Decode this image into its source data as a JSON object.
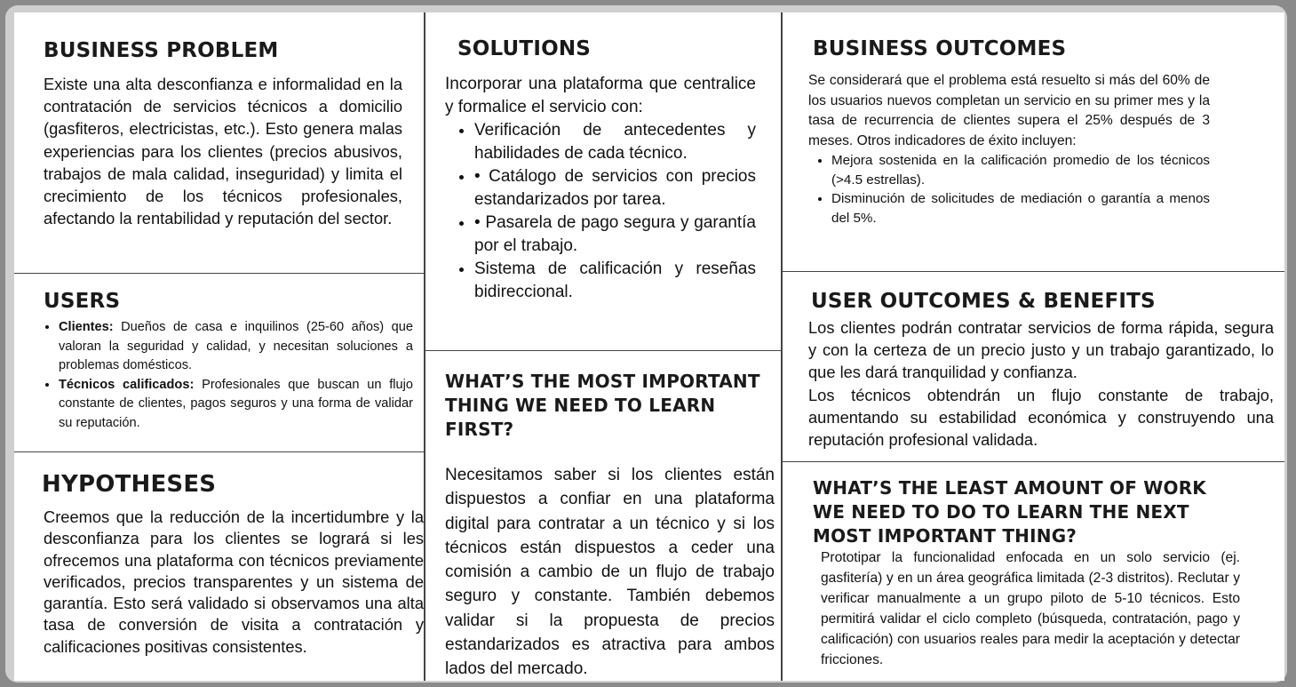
{
  "business_problem": {
    "title": "BUSINESS PROBLEM",
    "text": "Existe una alta desconfianza e informalidad en la contratación de servicios técnicos a domicilio (gasfiteros, electricistas, etc.). Esto genera malas experiencias para los clientes (precios abusivos, trabajos de mala calidad, inseguridad) y limita el crecimiento de los técnicos profesionales, afectando la rentabilidad y reputación del sector."
  },
  "users": {
    "title": "USERS",
    "items": [
      {
        "label": "Clientes:",
        "text": " Dueños de casa e inquilinos (25-60 años) que valoran la seguridad y calidad, y necesitan soluciones a problemas domésticos."
      },
      {
        "label": "Técnicos calificados:",
        "text": " Profesionales que buscan un flujo constante de clientes, pagos seguros y una forma de validar su reputación."
      }
    ]
  },
  "hypotheses": {
    "title": "HYPOTHESES",
    "text": "Creemos que la reducción de la incertidumbre y la desconfianza para los clientes se logrará si les ofrecemos una plataforma con técnicos previamente verificados, precios transparentes y un sistema de garantía. Esto será validado si observamos una alta tasa de conversión de visita a contratación y calificaciones positivas consistentes."
  },
  "solutions": {
    "title": "SOLUTIONS",
    "intro": "Incorporar una plataforma que centralice y formalice el servicio con:",
    "items": [
      "Verificación de antecedentes y habilidades de cada técnico.",
      "• Catálogo de servicios con precios estandarizados por tarea.",
      "•  Pasarela de pago segura y garantía por el trabajo.",
      " Sistema de calificación y reseñas bidireccional."
    ]
  },
  "learn_first": {
    "title": "WHAT’S THE MOST IMPORTANT THING WE NEED TO LEARN FIRST?",
    "text": "Necesitamos saber si los clientes están dispuestos a confiar en una plataforma digital para contratar a un técnico y si los técnicos están dispuestos a ceder una comisión a cambio de un flujo de trabajo seguro y constante. También debemos validar si la propuesta de precios estandarizados es atractiva para ambos lados del mercado."
  },
  "business_outcomes": {
    "title": "BUSINESS OUTCOMES",
    "text": "Se considerará que el problema está resuelto si más del 60% de los usuarios nuevos completan un servicio en su primer mes y la tasa de recurrencia de clientes supera el 25% después de 3 meses. Otros indicadores de éxito incluyen:",
    "items": [
      "Mejora sostenida en la calificación promedio de los técnicos (>4.5 estrellas).",
      "Disminución de solicitudes de mediación o garantía a menos del 5%."
    ]
  },
  "user_outcomes": {
    "title": "USER OUTCOMES & BENEFITS",
    "p1": "Los clientes podrán contratar servicios de forma rápida, segura y con la certeza de un precio justo y un trabajo garantizado, lo que les dará tranquilidad y confianza.",
    "p2": "Los técnicos obtendrán un flujo constante de trabajo, aumentando su estabilidad económica y construyendo una reputación profesional validada."
  },
  "least_work": {
    "title": "WHAT’S THE LEAST AMOUNT OF WORK WE NEED TO DO TO LEARN THE NEXT MOST IMPORTANT THING?",
    "text": "Prototipar la funcionalidad enfocada en un solo servicio (ej. gasfitería) y en un área geográfica limitada (2-3 distritos). Reclutar y verificar manualmente a un grupo piloto de 5-10 técnicos. Esto permitirá validar el ciclo completo (búsqueda, contratación, pago y calificación) con usuarios reales para medir la aceptación y detectar fricciones."
  }
}
